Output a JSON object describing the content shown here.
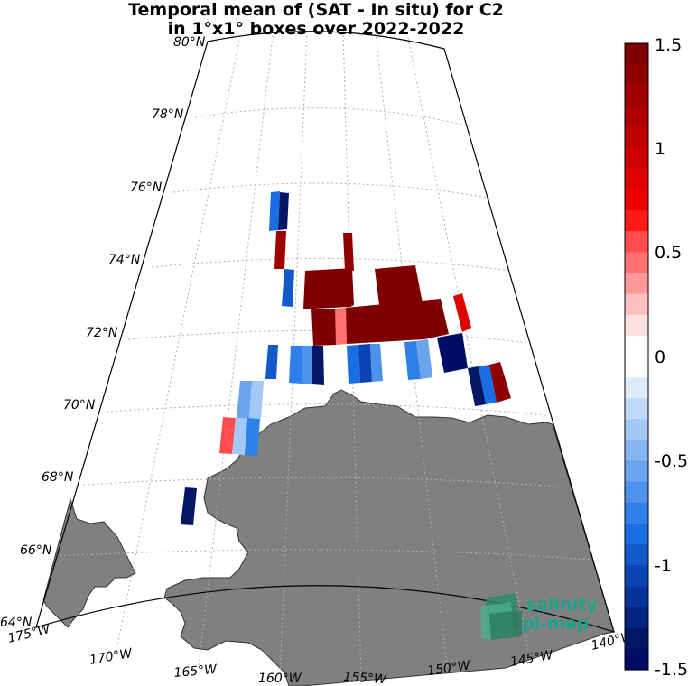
{
  "title": {
    "line1": "Temporal mean of (SAT - In situ) for C2",
    "line2": "in 1°x1° boxes over 2022-2022"
  },
  "map": {
    "lat_labels": [
      "80°N",
      "78°N",
      "76°N",
      "74°N",
      "72°N",
      "70°N",
      "68°N",
      "66°N",
      "64°N"
    ],
    "lon_labels": [
      "175°W",
      "170°W",
      "165°W",
      "160°W",
      "155°W",
      "150°W",
      "145°W",
      "140°W"
    ],
    "land_color": "#808080"
  },
  "colorbar": {
    "ticks": [
      "1.5",
      "1",
      "0.5",
      "0",
      "-0.5",
      "-1",
      "-1.5"
    ],
    "min": -1.5,
    "max": 1.5,
    "colors_top_to_bottom": [
      "#7f0000",
      "#8f0000",
      "#9f0000",
      "#af0000",
      "#bf0000",
      "#cf0000",
      "#df0000",
      "#ef0000",
      "#ff1a1a",
      "#ff4d4d",
      "#ff7070",
      "#ff9999",
      "#ffbfbf",
      "#ffe0e0",
      "#ffffff",
      "#ffffff",
      "#deebfb",
      "#c0d9f8",
      "#a4c8f5",
      "#86b6f2",
      "#6aa4ee",
      "#4d92eb",
      "#2f80e8",
      "#1a6ee4",
      "#1259cc",
      "#0b45b3",
      "#063399",
      "#032480",
      "#011766",
      "#000c66"
    ]
  },
  "logo": {
    "line1": "salinity",
    "line2": "pi-mep"
  }
}
